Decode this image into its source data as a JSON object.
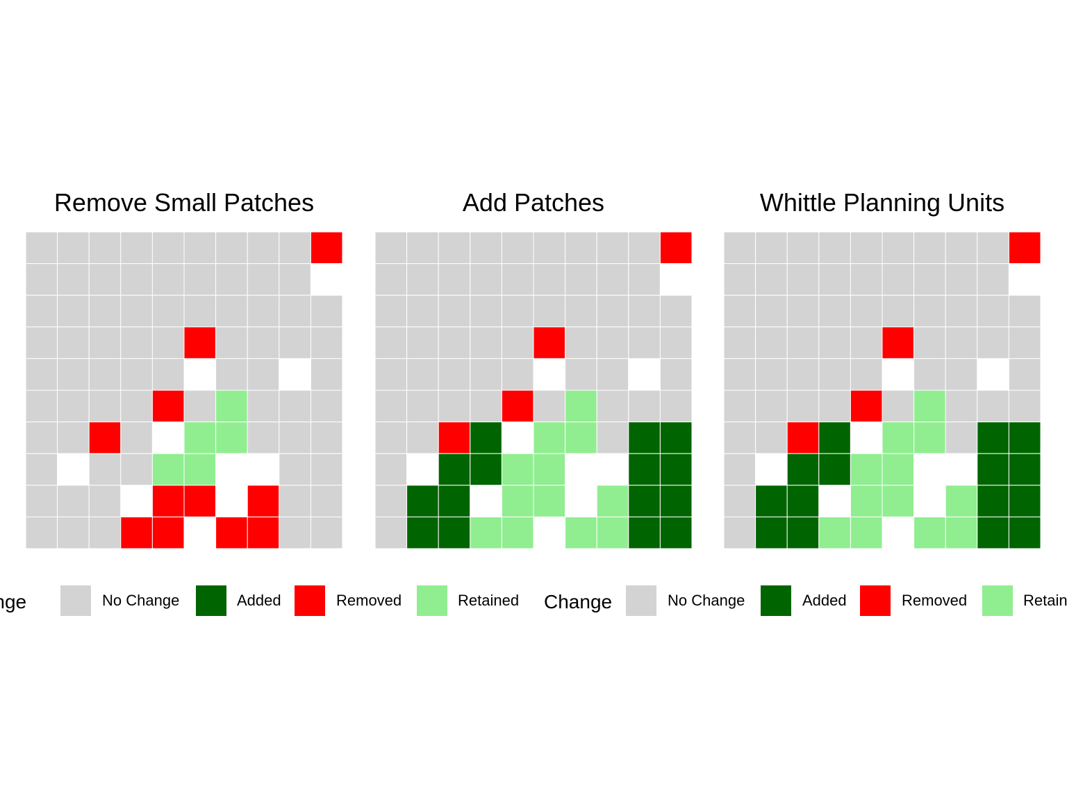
{
  "chart_data": {
    "type": "heatmap",
    "colors": {
      "No Change": "#d3d3d3",
      "Added": "#006400",
      "Removed": "#ff0000",
      "Retained": "#90ee90",
      "empty": "#ffffff"
    },
    "code_legend": {
      "N": "No Change",
      "A": "Added",
      "R": "Removed",
      "T": "Retained",
      ".": "empty"
    },
    "grid_size": [
      10,
      10
    ],
    "panels": [
      {
        "title": "Remove Small Patches",
        "grid": [
          "NNNNNNNNNR",
          "NNNNNNNNN.",
          "NNNNNNNNNN",
          "NNNNNRNNNN",
          "NNNNN.NN.N",
          "NNNNRNTNNN",
          "NNRN.TTNNN",
          "N.NNTT..NN",
          "NNN.RR.RNN",
          "NNNRR.RRNN"
        ]
      },
      {
        "title": "Add Patches",
        "grid": [
          "NNNNNNNNNR",
          "NNNNNNNNN.",
          "NNNNNNNNNN",
          "NNNNNRNNNN",
          "NNNNN.NN.N",
          "NNNNRNTNNN",
          "NNRA.TTNAA",
          "N.AATT..AA",
          "NAA.TT.TAA",
          "NAATT.TTAA"
        ]
      },
      {
        "title": "Whittle Planning Units",
        "grid": [
          "NNNNNNNNNR",
          "NNNNNNNNN.",
          "NNNNNNNNNN",
          "NNNNNRNNNN",
          "NNNNN.NN.N",
          "NNNNRNTNNN",
          "NNRA.TTNAA",
          "N.AATT..AA",
          "NAA.TT.TAA",
          "NAATT.TTAA"
        ]
      }
    ],
    "legends": [
      {
        "title": "Change",
        "items": [
          {
            "key": "No Change",
            "label": "No Change"
          },
          {
            "key": "Added",
            "label": "Added"
          },
          {
            "key": "Removed",
            "label": "Removed"
          },
          {
            "key": "Retained",
            "label": "Retained"
          }
        ]
      },
      {
        "title": "Change",
        "items": [
          {
            "key": "No Change",
            "label": "No Change"
          },
          {
            "key": "Added",
            "label": "Added"
          },
          {
            "key": "Removed",
            "label": "Removed"
          },
          {
            "key": "Retained",
            "label": "Retained"
          }
        ]
      }
    ]
  }
}
